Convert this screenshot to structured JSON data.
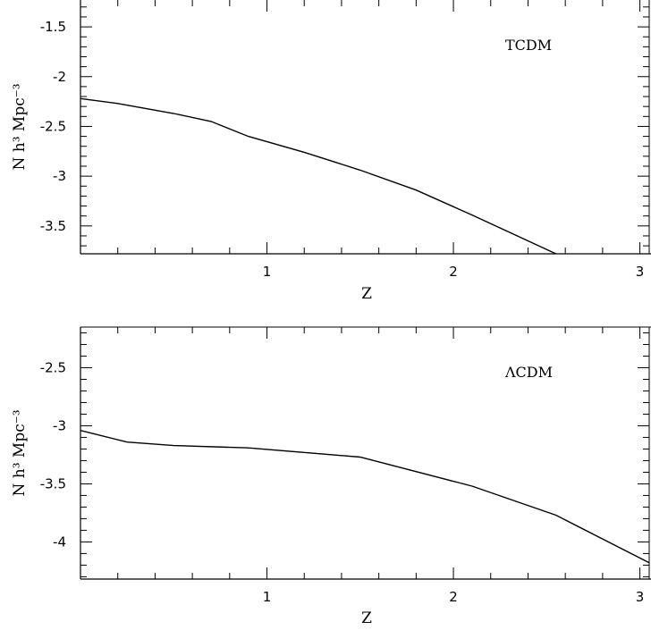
{
  "chart_data": [
    {
      "type": "line",
      "annotation": "TCDM",
      "xlabel": "Z",
      "ylabel": "N h³ Mpc⁻³",
      "xlim": [
        0,
        3.05
      ],
      "ylim": [
        -3.78,
        -1.23
      ],
      "xticks": [
        1,
        2,
        3
      ],
      "yticks": [
        -3.5,
        -3,
        -2.5,
        -2,
        -1.5
      ],
      "ytick_labels": [
        "-3.5",
        "-3",
        "-2.5",
        "-2",
        "-1.5"
      ],
      "xtick_labels": [
        "1",
        "2",
        "3"
      ],
      "series": [
        {
          "x": [
            0.0,
            0.2,
            0.5,
            0.7,
            0.9,
            1.2,
            1.5,
            1.8,
            2.1,
            2.55
          ],
          "y": [
            -2.22,
            -2.27,
            -2.37,
            -2.45,
            -2.6,
            -2.76,
            -2.94,
            -3.14,
            -3.39,
            -3.78
          ]
        }
      ]
    },
    {
      "type": "line",
      "annotation": "ΛCDM",
      "xlabel": "Z",
      "ylabel": "N h³ Mpc⁻³",
      "xlim": [
        0,
        3.05
      ],
      "ylim": [
        -4.32,
        -2.15
      ],
      "xticks": [
        1,
        2,
        3
      ],
      "yticks": [
        -4,
        -3.5,
        -3,
        -2.5
      ],
      "ytick_labels": [
        "-4",
        "-3.5",
        "-3",
        "-2.5"
      ],
      "xtick_labels": [
        "1",
        "2",
        "3"
      ],
      "series": [
        {
          "x": [
            0.0,
            0.25,
            0.5,
            0.9,
            1.5,
            2.1,
            2.55,
            3.05
          ],
          "y": [
            -3.04,
            -3.14,
            -3.17,
            -3.19,
            -3.27,
            -3.52,
            -3.77,
            -4.18
          ]
        }
      ]
    }
  ]
}
